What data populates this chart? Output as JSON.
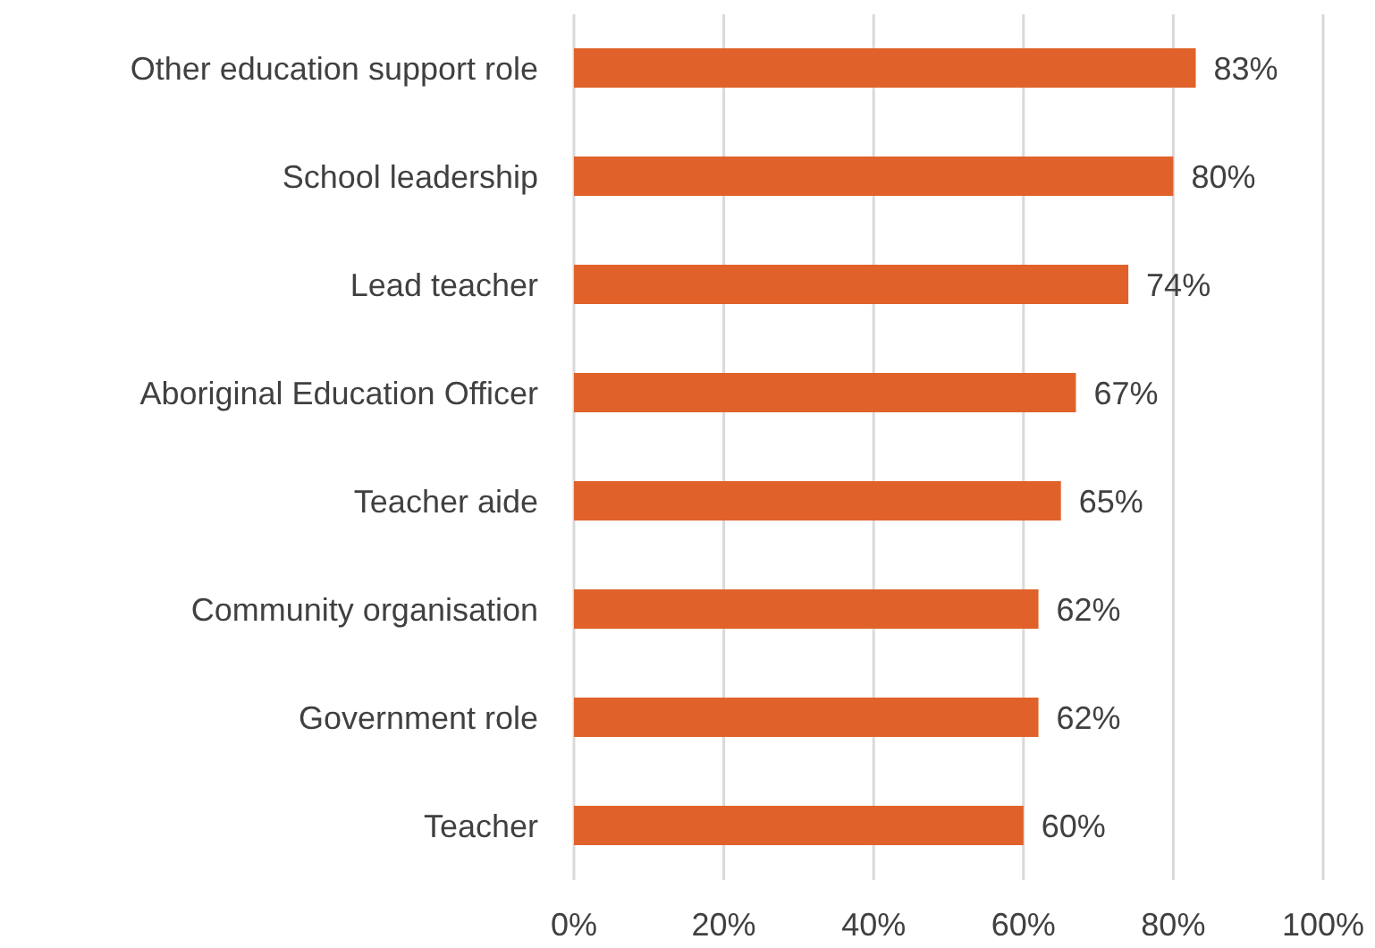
{
  "chart_data": {
    "type": "bar",
    "orientation": "horizontal",
    "categories": [
      "Other education support role",
      "School leadership",
      "Lead teacher",
      "Aboriginal Education Officer",
      "Teacher aide",
      "Community organisation",
      "Government role",
      "Teacher"
    ],
    "values": [
      83,
      80,
      74,
      67,
      65,
      62,
      62,
      60
    ],
    "value_labels": [
      "83%",
      "80%",
      "74%",
      "67%",
      "65%",
      "62%",
      "62%",
      "60%"
    ],
    "color": "#e0622a",
    "xlim": [
      0,
      100
    ],
    "xticks": [
      {
        "value": 0,
        "label": "0%"
      },
      {
        "value": 20,
        "label": "20%"
      },
      {
        "value": 40,
        "label": "40%"
      },
      {
        "value": 60,
        "label": "60%"
      },
      {
        "value": 80,
        "label": "80%"
      },
      {
        "value": 100,
        "label": "100%"
      }
    ],
    "grid": "x",
    "legend": false
  }
}
